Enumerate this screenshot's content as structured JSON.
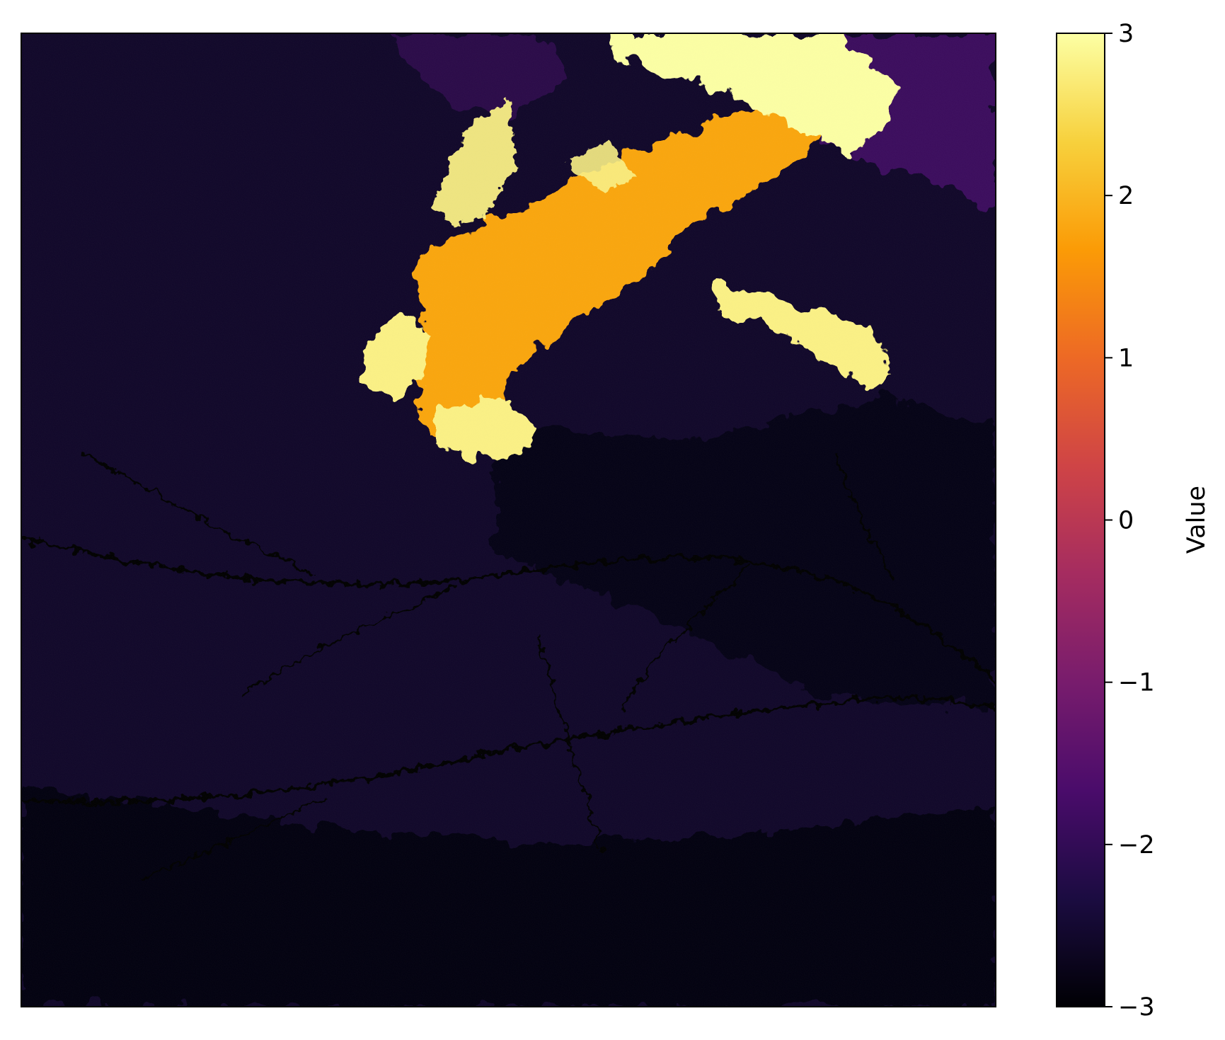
{
  "chart_data": {
    "type": "heatmap",
    "title": "",
    "xlabel": "",
    "ylabel": "",
    "colormap": "inferno",
    "colorbar": {
      "label": "Value",
      "vmin": -3,
      "vmax": 3,
      "ticks": [
        -3,
        -2,
        -1,
        0,
        1,
        2,
        3
      ],
      "tick_labels": [
        "−3",
        "−2",
        "−1",
        "0",
        "1",
        "2",
        "3"
      ],
      "colors": [
        "#000004",
        "#1b0c41",
        "#4a0c6b",
        "#781c6d",
        "#a52c60",
        "#cf4446",
        "#ed6925",
        "#fb9b06",
        "#f7d13d",
        "#fcffa4"
      ]
    },
    "axes_ticks_visible": false,
    "grid": false,
    "background_level": -2.6,
    "features": [
      {
        "name": "orange band",
        "level": 1.8
      },
      {
        "name": "bright plume north",
        "level": 3.0
      },
      {
        "name": "bright lobes",
        "level": 2.8
      },
      {
        "name": "violet highland northeast",
        "level": -1.8
      },
      {
        "name": "dark lowlands south",
        "level": -2.9
      },
      {
        "name": "river channels",
        "level": -3.0
      }
    ]
  }
}
